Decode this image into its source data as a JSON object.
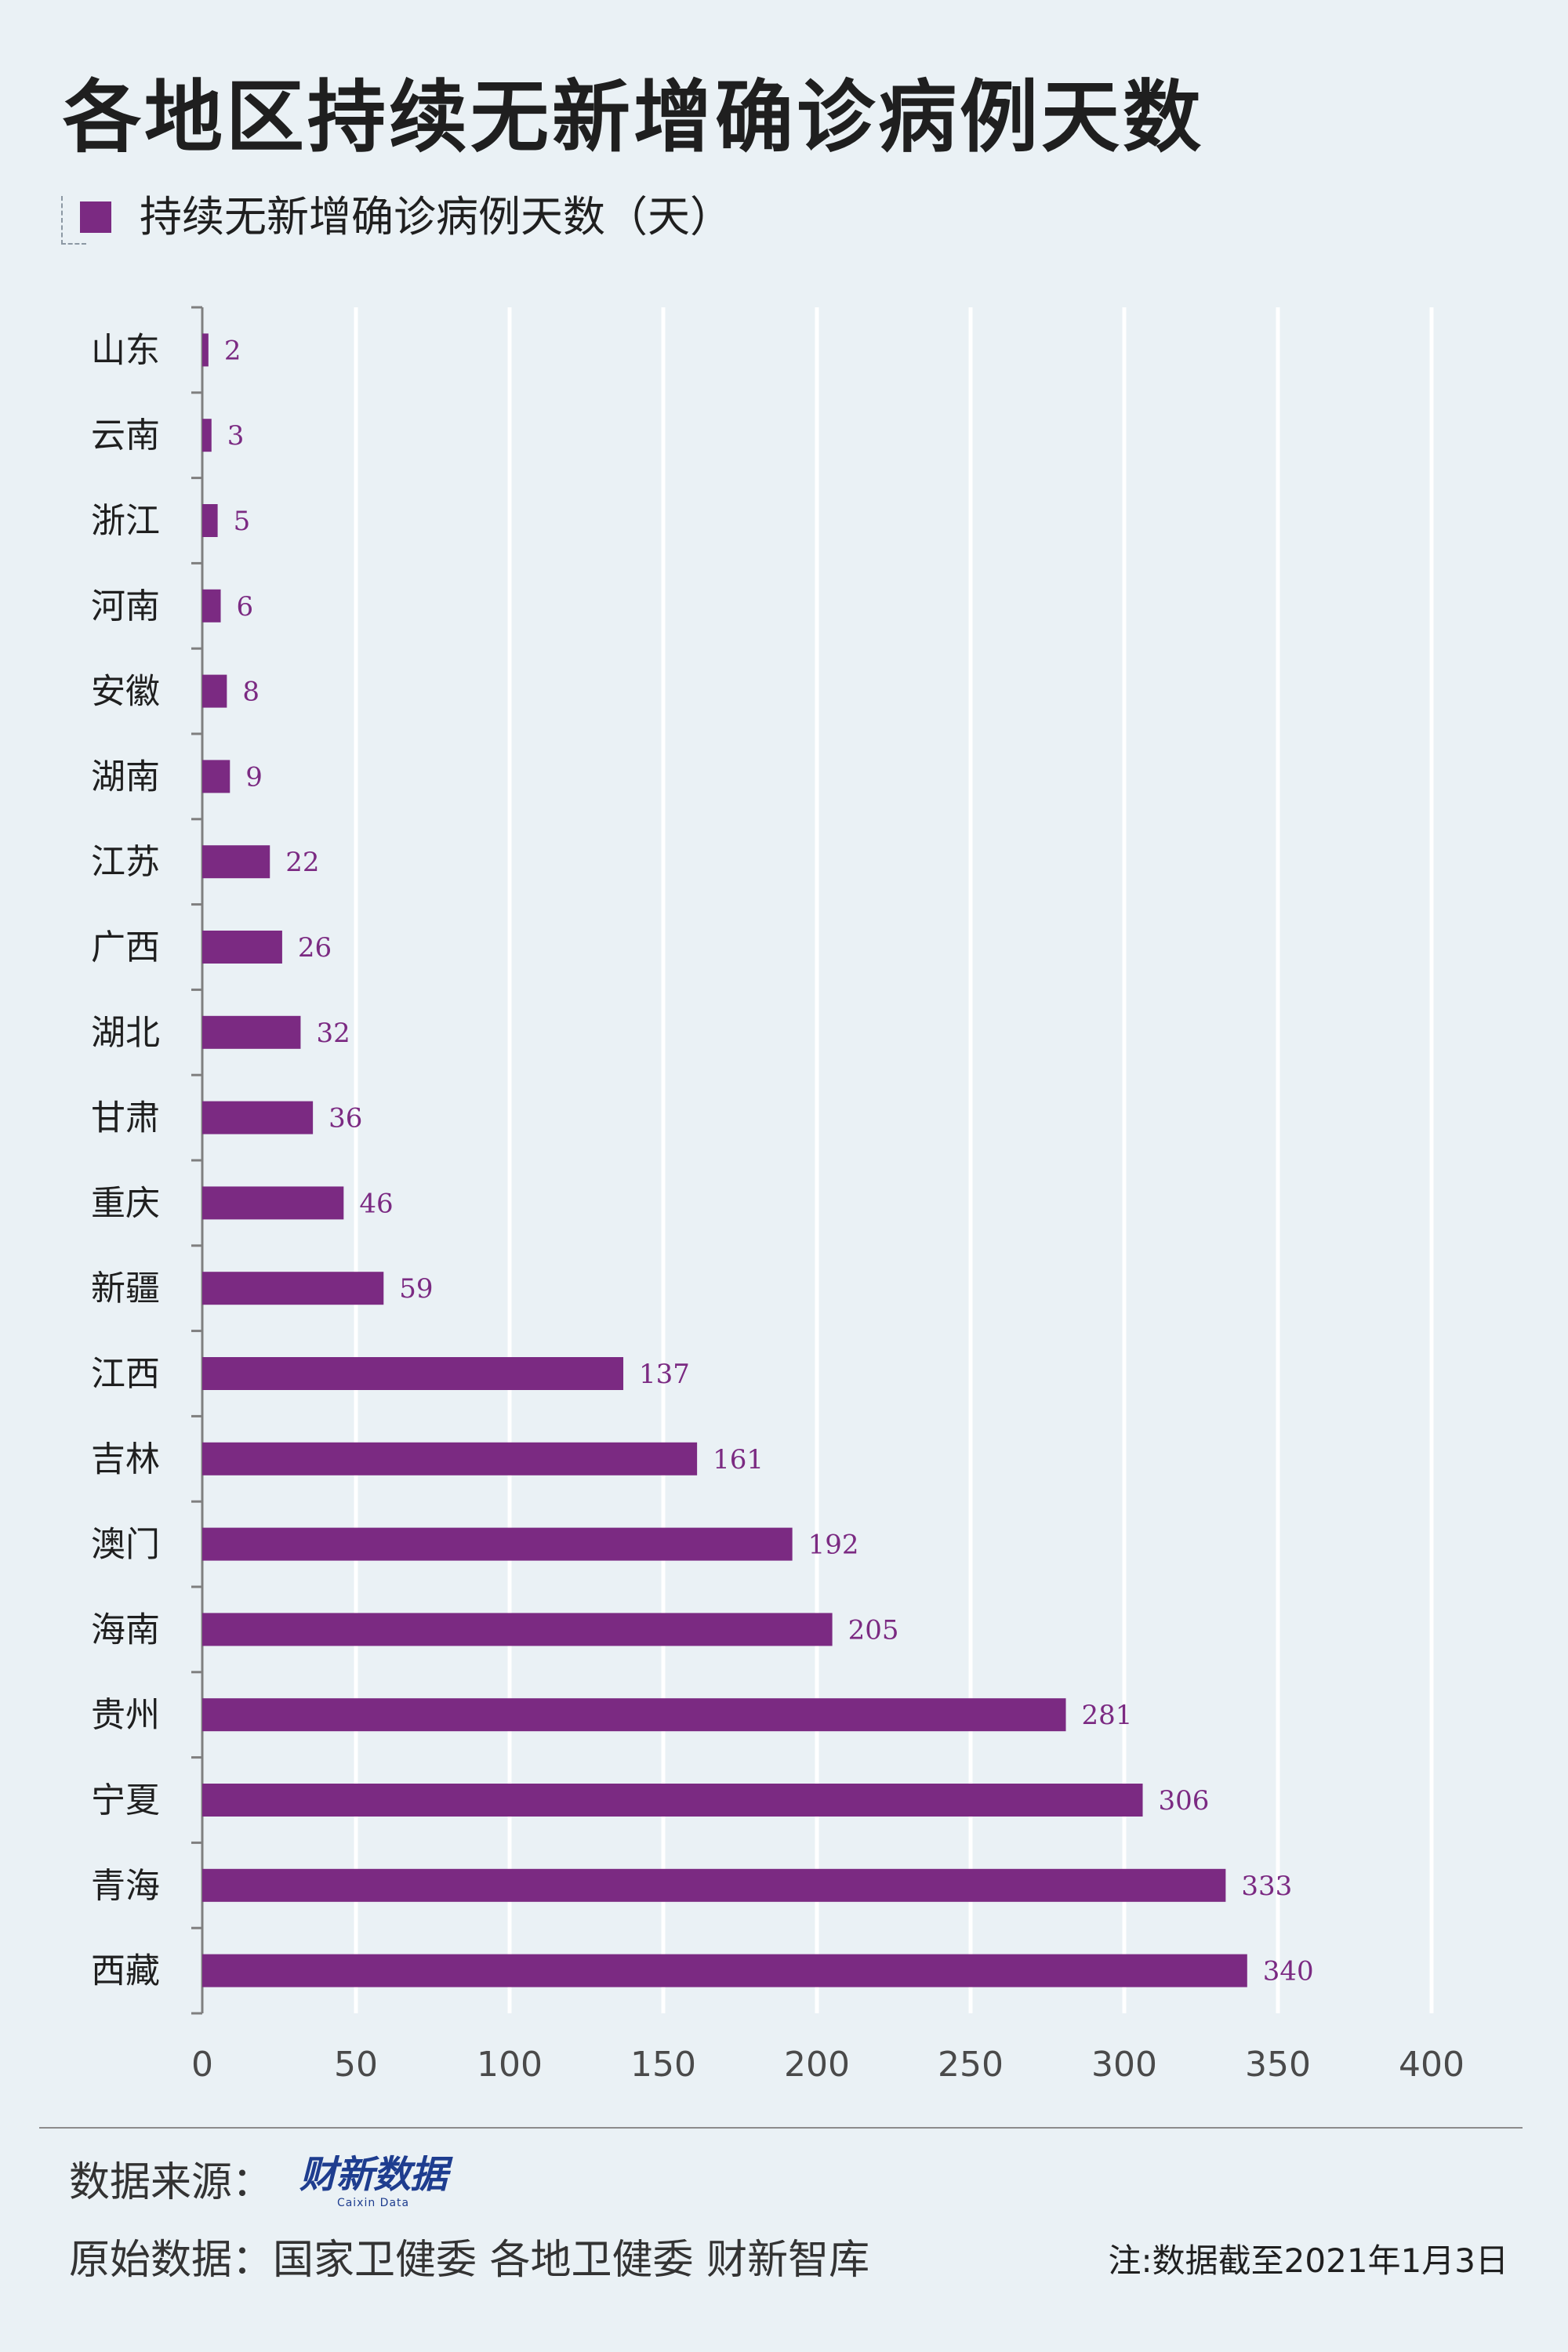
{
  "title": "各地区持续无新增确诊病例天数",
  "legend": {
    "label": "持续无新增确诊病例天数（天）",
    "color": "#7b2a82"
  },
  "chart_data": {
    "type": "bar",
    "orientation": "horizontal",
    "categories": [
      "山东",
      "云南",
      "浙江",
      "河南",
      "安徽",
      "湖南",
      "江苏",
      "广西",
      "湖北",
      "甘肃",
      "重庆",
      "新疆",
      "江西",
      "吉林",
      "澳门",
      "海南",
      "贵州",
      "宁夏",
      "青海",
      "西藏"
    ],
    "series": [
      {
        "name": "持续无新增确诊病例天数（天）",
        "values": [
          2,
          3,
          5,
          6,
          8,
          9,
          22,
          26,
          32,
          36,
          46,
          59,
          137,
          161,
          192,
          205,
          281,
          306,
          333,
          340
        ]
      }
    ],
    "xlim": [
      0,
      400
    ],
    "x_ticks": [
      0,
      50,
      100,
      150,
      200,
      250,
      300,
      350,
      400
    ],
    "grid": true,
    "legend_position": "top-left",
    "data_labels": true
  },
  "footer": {
    "source_label": "数据来源：",
    "brand_name": "财新数据",
    "brand_subtitle": "Caixin Data",
    "original_label": "原始数据：",
    "original_sources": "国家卫健委  各地卫健委  财新智库",
    "note": "注:数据截至2021年1月3日"
  },
  "colors": {
    "background": "#eaf1f5",
    "bar": "#7b2a82",
    "grid": "#ffffff",
    "label_purple": "#7b2a82",
    "brand": "#1e3d8f"
  }
}
